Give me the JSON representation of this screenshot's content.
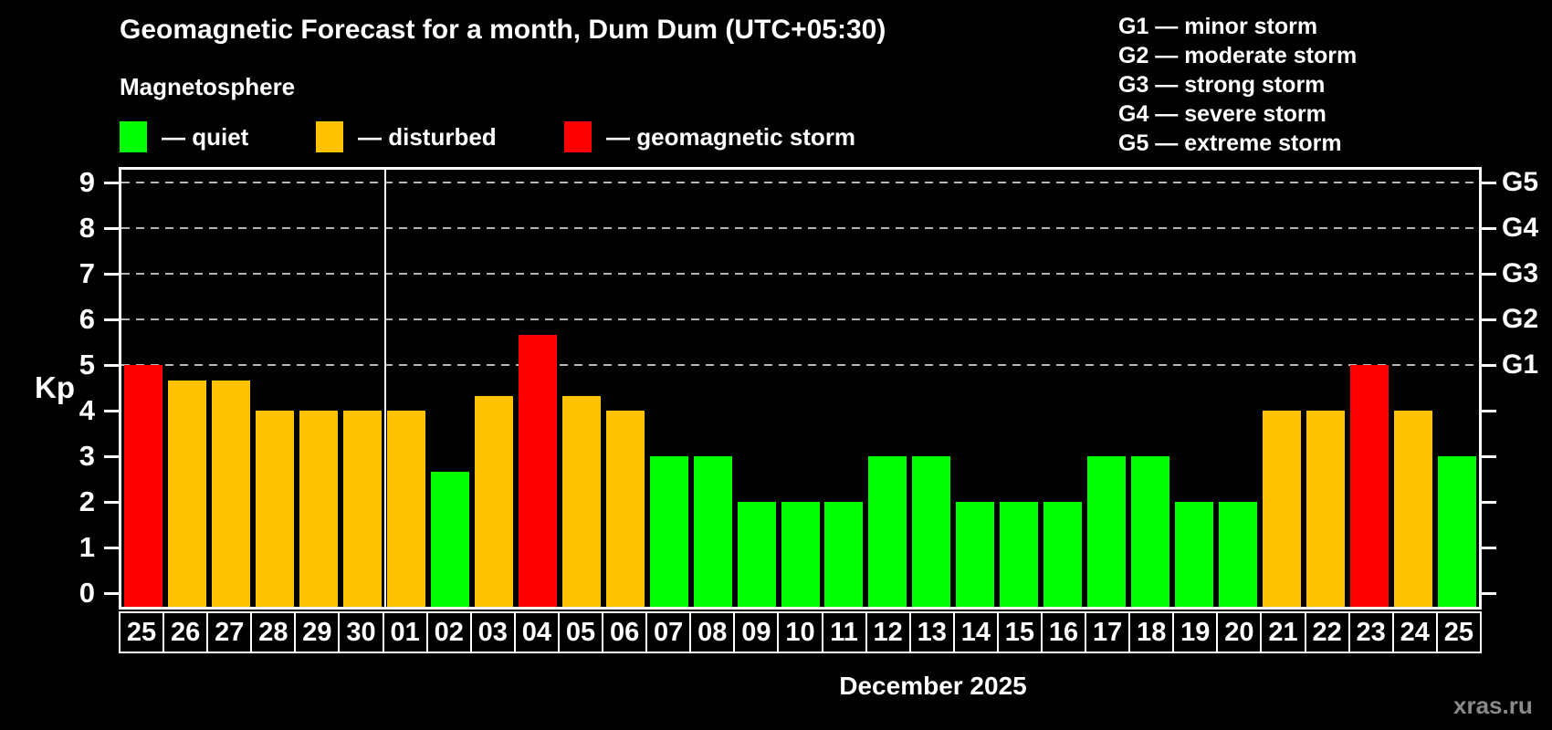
{
  "header": {
    "title": "Geomagnetic Forecast for a month, Dum Dum (UTC+05:30)",
    "subtitle": "Magnetosphere"
  },
  "legend": {
    "items": [
      {
        "name": "quiet",
        "label": "— quiet",
        "color": "#00ff00"
      },
      {
        "name": "disturbed",
        "label": "— disturbed",
        "color": "#ffc200"
      },
      {
        "name": "storm",
        "label": "— geomagnetic storm",
        "color": "#ff0000"
      }
    ]
  },
  "storm_legend": [
    "G1 — minor storm",
    "G2 — moderate storm",
    "G3 — strong storm",
    "G4 — severe storm",
    "G5 — extreme storm"
  ],
  "axes": {
    "ylabel": "Kp"
  },
  "footer": {
    "month_caption": "December 2025",
    "watermark": "xras.ru"
  },
  "chart_data": {
    "type": "bar",
    "title": "Geomagnetic Forecast for a month, Dum Dum (UTC+05:30)",
    "xlabel": "December 2025",
    "ylabel": "Kp",
    "ylim": [
      -0.3,
      9.3
    ],
    "yticks": [
      0,
      1,
      2,
      3,
      4,
      5,
      6,
      7,
      8,
      9
    ],
    "gridlines_at_kp": [
      5,
      6,
      7,
      8,
      9
    ],
    "grid": "horizontal dashed at Kp 5-9 only",
    "legend_position": "top",
    "right_axis": [
      {
        "kp": 5,
        "label": "G1"
      },
      {
        "kp": 6,
        "label": "G2"
      },
      {
        "kp": 7,
        "label": "G3"
      },
      {
        "kp": 8,
        "label": "G4"
      },
      {
        "kp": 9,
        "label": "G5"
      }
    ],
    "month_separator_after_index": 5,
    "state_colors": {
      "quiet": "#00ff00",
      "disturbed": "#ffc200",
      "storm": "#ff0000"
    },
    "bars": [
      {
        "day": "25",
        "kp": 5.0,
        "state": "storm"
      },
      {
        "day": "26",
        "kp": 4.67,
        "state": "disturbed"
      },
      {
        "day": "27",
        "kp": 4.67,
        "state": "disturbed"
      },
      {
        "day": "28",
        "kp": 4.0,
        "state": "disturbed"
      },
      {
        "day": "29",
        "kp": 4.0,
        "state": "disturbed"
      },
      {
        "day": "30",
        "kp": 4.0,
        "state": "disturbed"
      },
      {
        "day": "01",
        "kp": 4.0,
        "state": "disturbed"
      },
      {
        "day": "02",
        "kp": 2.67,
        "state": "quiet"
      },
      {
        "day": "03",
        "kp": 4.33,
        "state": "disturbed"
      },
      {
        "day": "04",
        "kp": 5.67,
        "state": "storm"
      },
      {
        "day": "05",
        "kp": 4.33,
        "state": "disturbed"
      },
      {
        "day": "06",
        "kp": 4.0,
        "state": "disturbed"
      },
      {
        "day": "07",
        "kp": 3.0,
        "state": "quiet"
      },
      {
        "day": "08",
        "kp": 3.0,
        "state": "quiet"
      },
      {
        "day": "09",
        "kp": 2.0,
        "state": "quiet"
      },
      {
        "day": "10",
        "kp": 2.0,
        "state": "quiet"
      },
      {
        "day": "11",
        "kp": 2.0,
        "state": "quiet"
      },
      {
        "day": "12",
        "kp": 3.0,
        "state": "quiet"
      },
      {
        "day": "13",
        "kp": 3.0,
        "state": "quiet"
      },
      {
        "day": "14",
        "kp": 2.0,
        "state": "quiet"
      },
      {
        "day": "15",
        "kp": 2.0,
        "state": "quiet"
      },
      {
        "day": "16",
        "kp": 2.0,
        "state": "quiet"
      },
      {
        "day": "17",
        "kp": 3.0,
        "state": "quiet"
      },
      {
        "day": "18",
        "kp": 3.0,
        "state": "quiet"
      },
      {
        "day": "19",
        "kp": 2.0,
        "state": "quiet"
      },
      {
        "day": "20",
        "kp": 2.0,
        "state": "quiet"
      },
      {
        "day": "21",
        "kp": 4.0,
        "state": "disturbed"
      },
      {
        "day": "22",
        "kp": 4.0,
        "state": "disturbed"
      },
      {
        "day": "23",
        "kp": 5.0,
        "state": "storm"
      },
      {
        "day": "24",
        "kp": 4.0,
        "state": "disturbed"
      },
      {
        "day": "25",
        "kp": 3.0,
        "state": "quiet"
      }
    ]
  }
}
